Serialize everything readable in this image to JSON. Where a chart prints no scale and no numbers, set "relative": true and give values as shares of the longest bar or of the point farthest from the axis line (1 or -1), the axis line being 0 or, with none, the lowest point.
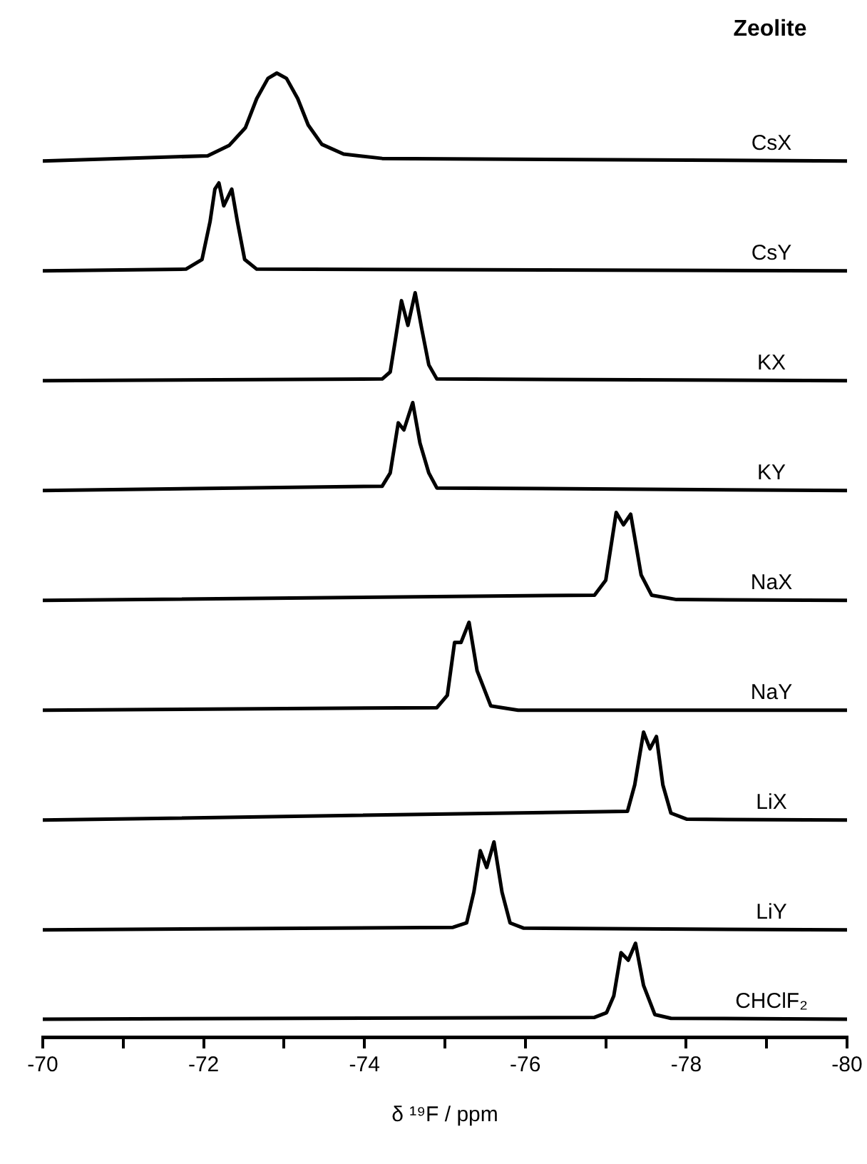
{
  "chart_data": [
    {
      "type": "line",
      "title": "Zeolite",
      "relative": true,
      "xlim": [
        -70,
        -80
      ],
      "tick_labels": false,
      "x": [
        -70,
        -72.05,
        -72.32,
        -72.52,
        -72.66,
        -72.8,
        -72.91,
        -73.03,
        -73.17,
        -73.3,
        -73.47,
        -73.74,
        -74.22,
        -80
      ],
      "series": [
        {
          "name": "CsX",
          "color": "#000000",
          "values": [
            0,
            0.06,
            0.18,
            0.38,
            0.71,
            0.94,
            1,
            0.94,
            0.71,
            0.41,
            0.19,
            0.08,
            0.03,
            0
          ]
        }
      ]
    },
    {
      "type": "line",
      "relative": true,
      "xlim": [
        -70,
        -80
      ],
      "tick_labels": false,
      "x": [
        -70,
        -71.78,
        -71.98,
        -72.08,
        -72.14,
        -72.19,
        -72.25,
        -72.35,
        -72.42,
        -72.51,
        -72.66,
        -80
      ],
      "series": [
        {
          "name": "CsY",
          "color": "#000000",
          "values": [
            0,
            0.02,
            0.13,
            0.56,
            0.93,
            1,
            0.74,
            0.93,
            0.56,
            0.13,
            0.02,
            0
          ]
        }
      ]
    },
    {
      "type": "line",
      "relative": true,
      "xlim": [
        -70,
        -80
      ],
      "tick_labels": false,
      "x": [
        -70,
        -74.22,
        -74.32,
        -74.39,
        -74.46,
        -74.54,
        -74.63,
        -74.71,
        -74.8,
        -74.9,
        -80
      ],
      "series": [
        {
          "name": "KX",
          "color": "#000000",
          "values": [
            0,
            0.02,
            0.1,
            0.5,
            0.91,
            0.63,
            1,
            0.6,
            0.18,
            0.02,
            0
          ]
        }
      ]
    },
    {
      "type": "line",
      "relative": true,
      "xlim": [
        -70,
        -80
      ],
      "tick_labels": false,
      "x": [
        -70,
        -74.22,
        -74.32,
        -74.42,
        -74.49,
        -74.6,
        -74.69,
        -74.8,
        -74.9,
        -80
      ],
      "series": [
        {
          "name": "KY",
          "color": "#000000",
          "values": [
            0,
            0.05,
            0.2,
            0.77,
            0.69,
            1,
            0.54,
            0.2,
            0.03,
            0
          ]
        }
      ]
    },
    {
      "type": "line",
      "relative": true,
      "xlim": [
        -70,
        -80
      ],
      "tick_labels": false,
      "x": [
        -70,
        -76.86,
        -77,
        -77.13,
        -77.22,
        -77.31,
        -77.44,
        -77.57,
        -77.88,
        -80
      ],
      "series": [
        {
          "name": "NaX",
          "color": "#000000",
          "values": [
            0,
            0.06,
            0.23,
            1,
            0.86,
            0.98,
            0.29,
            0.06,
            0.01,
            0
          ]
        }
      ]
    },
    {
      "type": "line",
      "relative": true,
      "xlim": [
        -70,
        -80
      ],
      "tick_labels": false,
      "x": [
        -70,
        -74.9,
        -75.03,
        -75.12,
        -75.2,
        -75.3,
        -75.4,
        -75.57,
        -75.91,
        -80
      ],
      "series": [
        {
          "name": "NaY",
          "color": "#000000",
          "values": [
            0,
            0.03,
            0.17,
            0.77,
            0.77,
            1,
            0.45,
            0.05,
            0,
            0
          ]
        }
      ]
    },
    {
      "type": "line",
      "relative": true,
      "xlim": [
        -70,
        -80
      ],
      "tick_labels": false,
      "x": [
        -70,
        -77.27,
        -77.36,
        -77.47,
        -77.55,
        -77.63,
        -77.71,
        -77.81,
        -78.01,
        -80
      ],
      "series": [
        {
          "name": "LiX",
          "color": "#000000",
          "values": [
            0,
            0.1,
            0.4,
            1,
            0.81,
            0.95,
            0.4,
            0.08,
            0.01,
            0
          ]
        }
      ]
    },
    {
      "type": "line",
      "relative": true,
      "xlim": [
        -70,
        -80
      ],
      "tick_labels": false,
      "x": [
        -70,
        -75.1,
        -75.27,
        -75.36,
        -75.44,
        -75.52,
        -75.61,
        -75.71,
        -75.81,
        -75.98,
        -80
      ],
      "series": [
        {
          "name": "LiY",
          "color": "#000000",
          "values": [
            0,
            0.03,
            0.08,
            0.43,
            0.9,
            0.71,
            1,
            0.43,
            0.08,
            0.02,
            0
          ]
        }
      ]
    },
    {
      "type": "line",
      "relative": true,
      "xlim": [
        -70,
        -80
      ],
      "xticks": [
        -70,
        {
          "value": -71,
          "label": null
        },
        -72,
        {
          "value": -73,
          "label": null
        },
        -74,
        {
          "value": -75,
          "label": null
        },
        -76,
        {
          "value": -77,
          "label": null
        },
        -78,
        {
          "value": -79,
          "label": null
        },
        -80
      ],
      "xlabel": "δ ¹⁹F / ppm",
      "x": [
        -70,
        -76.86,
        -77.01,
        -77.1,
        -77.19,
        -77.28,
        -77.37,
        -77.47,
        -77.61,
        -77.81,
        -80
      ],
      "series": [
        {
          "name": "CHClF₂",
          "color": "#000000",
          "values": [
            0.19,
            0.21,
            0.26,
            0.44,
            0.9,
            0.82,
            1,
            0.55,
            0.24,
            0.2,
            0.19
          ]
        }
      ]
    }
  ]
}
